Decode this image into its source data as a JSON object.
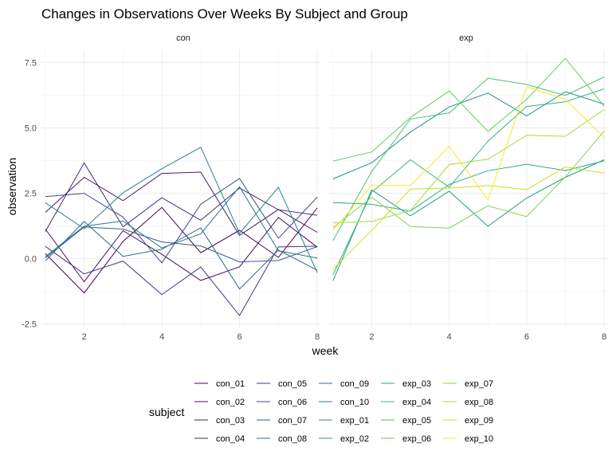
{
  "chart_data": {
    "type": "line",
    "title": "Changes in Observations Over Weeks By Subject and Group",
    "xlabel": "week",
    "ylabel": "observation",
    "facets": [
      "con",
      "exp"
    ],
    "x": [
      1,
      2,
      3,
      4,
      5,
      6,
      7,
      8
    ],
    "xticks": [
      2,
      4,
      6,
      8
    ],
    "yticks": [
      -2.5,
      0.0,
      2.5,
      5.0,
      7.5
    ],
    "ytick_labels": [
      "-2.5",
      "0.0",
      "2.5",
      "5.0",
      "7.5"
    ],
    "xlim": [
      0.9,
      8.1
    ],
    "ylim": [
      -2.6,
      8.0
    ],
    "grid": true,
    "legend_title": "subject",
    "legend_placement": "bottom",
    "series": [
      {
        "name": "con_01",
        "facet": "con",
        "color": "#440154",
        "values": [
          0.2,
          -1.31,
          0.66,
          1.96,
          0.23,
          1.09,
          0.05,
          1.94
        ]
      },
      {
        "name": "con_02",
        "facet": "con",
        "color": "#470e61",
        "values": [
          1.13,
          -0.88,
          1.07,
          0.17,
          -0.83,
          -0.31,
          1.58,
          0.44
        ]
      },
      {
        "name": "con_03",
        "facet": "con",
        "color": "#481c6e",
        "values": [
          1.77,
          3.11,
          2.22,
          3.26,
          3.31,
          0.89,
          1.88,
          1.01
        ]
      },
      {
        "name": "con_04",
        "facet": "con",
        "color": "#46297a",
        "values": [
          1.04,
          3.66,
          1.22,
          2.33,
          1.47,
          2.7,
          1.87,
          1.66
        ]
      },
      {
        "name": "con_05",
        "facet": "con",
        "color": "#433683",
        "values": [
          0.47,
          -0.58,
          -0.09,
          -1.37,
          -0.32,
          -2.17,
          0.45,
          0.48
        ]
      },
      {
        "name": "con_06",
        "facet": "con",
        "color": "#3e4a89",
        "values": [
          2.37,
          2.5,
          1.59,
          -0.16,
          2.08,
          3.07,
          0.78,
          2.35
        ]
      },
      {
        "name": "con_07",
        "facet": "con",
        "color": "#38598c",
        "values": [
          0.03,
          1.21,
          1.13,
          0.64,
          0.49,
          -0.12,
          -0.07,
          0.46
        ]
      },
      {
        "name": "con_08",
        "facet": "con",
        "color": "#31688e",
        "values": [
          -0.08,
          1.42,
          0.09,
          0.36,
          1.18,
          -1.16,
          0.33,
          -0.44
        ]
      },
      {
        "name": "con_09",
        "facet": "con",
        "color": "#2b758e",
        "values": [
          0.08,
          1.24,
          1.44,
          0.41,
          0.95,
          2.75,
          0.3,
          0.03
        ]
      },
      {
        "name": "con_10",
        "facet": "con",
        "color": "#26838f",
        "values": [
          2.14,
          1.15,
          2.52,
          3.44,
          4.26,
          0.97,
          2.73,
          -0.53
        ]
      },
      {
        "name": "exp_01",
        "facet": "exp",
        "color": "#21918c",
        "values": [
          3.05,
          3.67,
          4.84,
          5.8,
          6.33,
          5.46,
          6.38,
          5.91
        ]
      },
      {
        "name": "exp_02",
        "facet": "exp",
        "color": "#1f9e89",
        "values": [
          -0.84,
          2.63,
          1.64,
          2.58,
          1.24,
          2.32,
          3.11,
          3.78
        ]
      },
      {
        "name": "exp_03",
        "facet": "exp",
        "color": "#25ab82",
        "values": [
          2.15,
          2.08,
          1.82,
          2.84,
          3.36,
          3.61,
          3.37,
          3.74
        ]
      },
      {
        "name": "exp_04",
        "facet": "exp",
        "color": "#35b779",
        "values": [
          -0.62,
          2.54,
          3.78,
          2.73,
          4.49,
          5.82,
          6.0,
          6.49
        ]
      },
      {
        "name": "exp_05",
        "facet": "exp",
        "color": "#4ac16d",
        "values": [
          0.7,
          3.33,
          5.34,
          5.57,
          6.9,
          6.66,
          6.24,
          6.95
        ]
      },
      {
        "name": "exp_06",
        "facet": "exp",
        "color": "#65cb5e",
        "values": [
          3.73,
          4.08,
          5.4,
          6.41,
          4.87,
          6.09,
          7.66,
          5.83
        ]
      },
      {
        "name": "exp_07",
        "facet": "exp",
        "color": "#84d44b",
        "values": [
          1.18,
          2.35,
          1.23,
          1.17,
          2.02,
          1.61,
          3.13,
          4.88
        ]
      },
      {
        "name": "exp_08",
        "facet": "exp",
        "color": "#a5db36",
        "values": [
          1.37,
          1.43,
          1.84,
          3.6,
          3.8,
          4.72,
          4.68,
          5.7
        ]
      },
      {
        "name": "exp_09",
        "facet": "exp",
        "color": "#c8e020",
        "values": [
          -0.4,
          1.08,
          2.66,
          2.7,
          2.8,
          2.64,
          3.51,
          3.27
        ]
      },
      {
        "name": "exp_10",
        "facet": "exp",
        "color": "#fde725",
        "values": [
          1.09,
          2.8,
          2.8,
          4.3,
          2.25,
          6.57,
          6.09,
          4.64
        ]
      }
    ]
  }
}
